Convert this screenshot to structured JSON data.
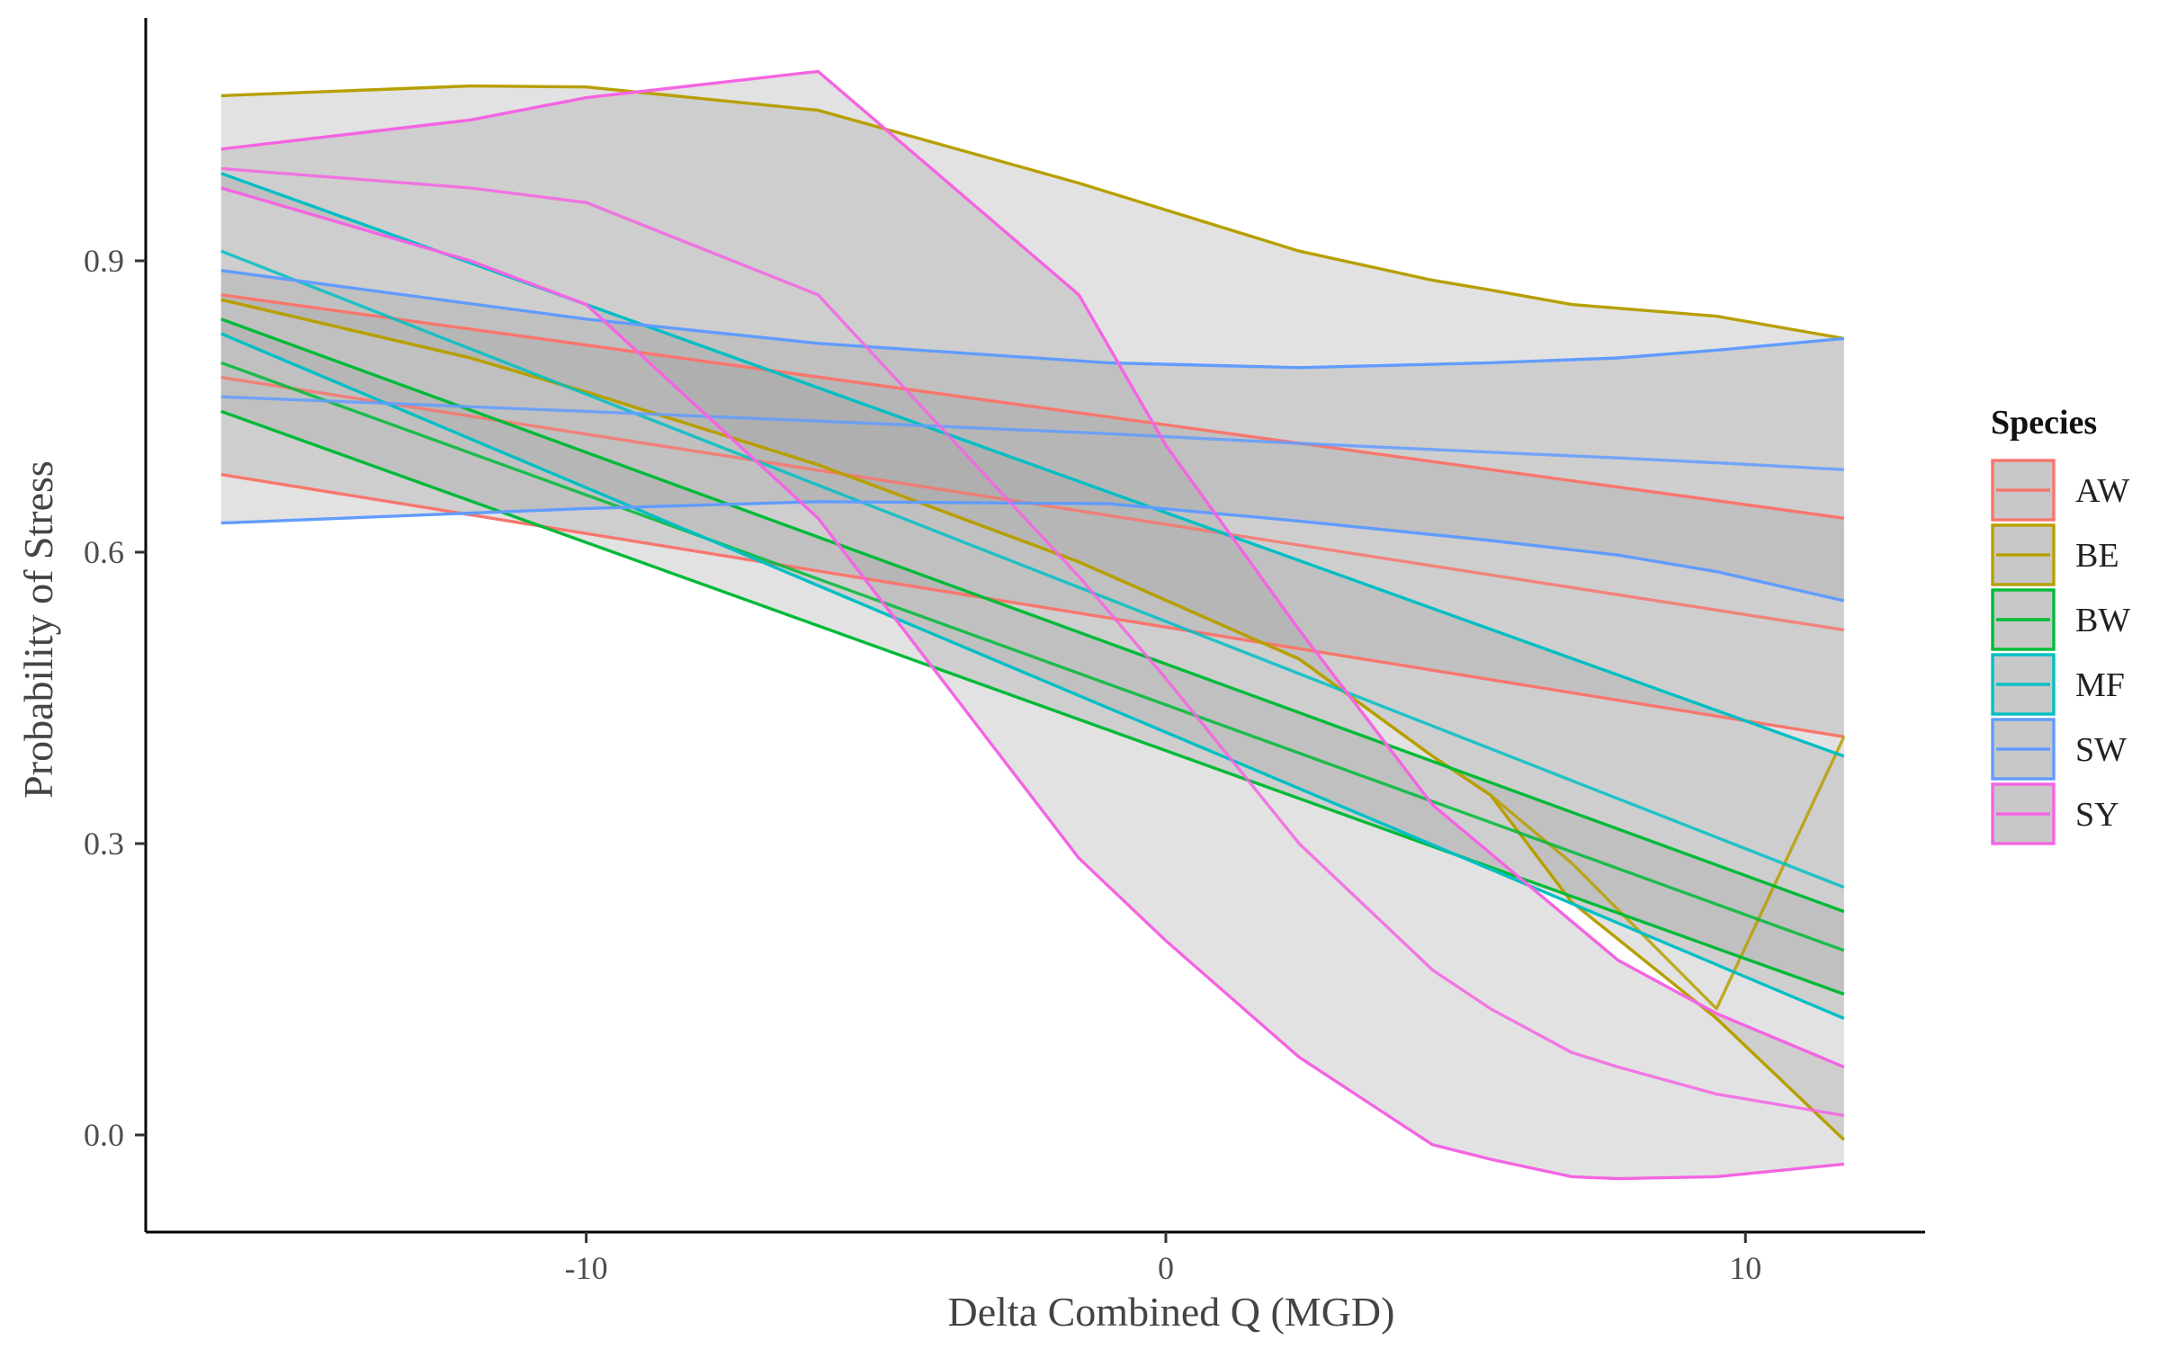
{
  "chart_data": {
    "type": "line",
    "title": "",
    "xlabel": "Delta Combined Q (MGD)",
    "ylabel": "Probability of Stress",
    "xlim": [
      -17.6,
      13.1
    ],
    "ylim": [
      -0.1,
      1.15
    ],
    "xticks": [
      -10,
      0,
      10
    ],
    "xtick_labels": [
      "-10",
      "0",
      "10"
    ],
    "yticks": [
      0.0,
      0.3,
      0.6,
      0.9
    ],
    "ytick_labels": [
      "0.0",
      "0.3",
      "0.6",
      "0.9"
    ],
    "grid": false,
    "legend": {
      "title": "Species",
      "position": "right"
    },
    "band_fill": "#a0a0a0",
    "band_opacity": 0.3,
    "series": [
      {
        "name": "AW",
        "color": "#F8766D",
        "x": [
          -16.3,
          11.7
        ],
        "fit": [
          0.78,
          0.52
        ],
        "lower": [
          0.68,
          0.41
        ],
        "upper": [
          0.865,
          0.635
        ]
      },
      {
        "name": "BE",
        "color": "#B79F00",
        "x": [
          -16.3,
          -12,
          -10,
          -6,
          -1.5,
          2.3,
          4.6,
          5.6,
          7,
          9.5,
          11.7
        ],
        "fit": [
          0.86,
          0.8,
          0.765,
          0.69,
          0.59,
          0.49,
          0.39,
          0.35,
          0.28,
          0.13,
          0.41
        ],
        "lower": [
          0.86,
          0.8,
          0.765,
          0.69,
          0.59,
          0.49,
          0.39,
          0.35,
          0.24,
          0.12,
          -0.005
        ],
        "upper": [
          1.07,
          1.08,
          1.079,
          1.055,
          0.98,
          0.91,
          0.88,
          0.87,
          0.855,
          0.843,
          0.82
        ]
      },
      {
        "name": "BW",
        "color": "#00BA38",
        "x": [
          -16.3,
          11.7
        ],
        "fit": [
          0.795,
          0.19
        ],
        "lower": [
          0.745,
          0.145
        ],
        "upper": [
          0.84,
          0.23
        ]
      },
      {
        "name": "MF",
        "color": "#00BFC4",
        "x": [
          -16.3,
          11.7
        ],
        "fit": [
          0.91,
          0.255
        ],
        "lower": [
          0.825,
          0.12
        ],
        "upper": [
          0.99,
          0.39
        ]
      },
      {
        "name": "SW",
        "color": "#619CFF",
        "x": [
          -16.3,
          -10,
          -6,
          -1,
          2.3,
          5.6,
          7.8,
          9.5,
          11.7
        ],
        "fit": [
          0.76,
          0.745,
          0.735,
          0.722,
          0.712,
          0.703,
          0.697,
          0.692,
          0.685
        ],
        "lower": [
          0.63,
          0.645,
          0.652,
          0.65,
          0.632,
          0.612,
          0.597,
          0.58,
          0.55
        ],
        "upper": [
          0.89,
          0.84,
          0.815,
          0.795,
          0.79,
          0.795,
          0.8,
          0.808,
          0.82
        ]
      },
      {
        "name": "SY",
        "color": "#F564E3",
        "x": [
          -16.3,
          -12,
          -10,
          -6,
          -1.5,
          0,
          2.3,
          4.6,
          5.6,
          7,
          7.8,
          9.5,
          11.7
        ],
        "fit": [
          0.995,
          0.975,
          0.96,
          0.865,
          0.575,
          0.47,
          0.3,
          0.17,
          0.13,
          0.085,
          0.07,
          0.042,
          0.02
        ],
        "lower": [
          0.975,
          0.9,
          0.855,
          0.635,
          0.285,
          0.2,
          0.08,
          -0.01,
          -0.025,
          -0.043,
          -0.045,
          -0.043,
          -0.03
        ],
        "upper": [
          1.015,
          1.045,
          1.068,
          1.095,
          0.865,
          0.71,
          0.52,
          0.34,
          0.29,
          0.22,
          0.18,
          0.125,
          0.07
        ]
      }
    ]
  }
}
